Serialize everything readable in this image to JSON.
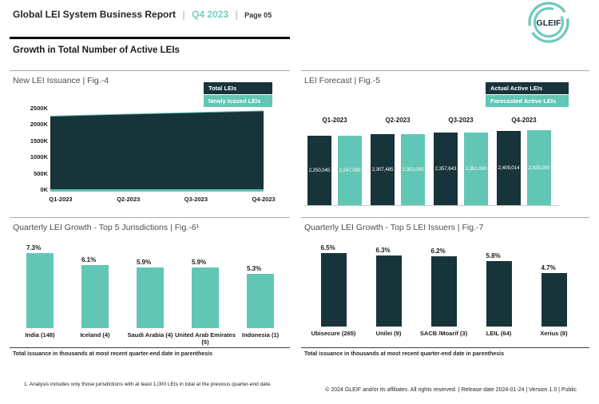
{
  "header": {
    "title": "Global LEI System Business Report",
    "separator": "|",
    "period": "Q4 2023",
    "page": "Page 05",
    "logo_text": "GLEIF"
  },
  "section": {
    "title": "Growth in Total Number of Active LEIs"
  },
  "colors": {
    "dark": "#17343A",
    "teal": "#62C6B5",
    "header_teal": "#7BCCC1",
    "title_gray": "#4D4D4D",
    "divider_gray": "#A9A9A9"
  },
  "chart_data": [
    {
      "id": "fig4",
      "type": "area",
      "title": "New LEI Issuance | Fig.-4",
      "x": [
        "Q1-2023",
        "Q2-2023",
        "Q3-2023",
        "Q4-2023"
      ],
      "series": [
        {
          "name": "Total LEIs",
          "color": "dark",
          "values": [
            2250045,
            2307485,
            2357643,
            2409014
          ]
        },
        {
          "name": "Newly Issued LEIs",
          "color": "teal",
          "values": [
            70000,
            70000,
            70000,
            70000
          ]
        }
      ],
      "ylim": [
        0,
        2500000
      ],
      "y_tick_labels": [
        "2500K",
        "2000K",
        "1500K",
        "1000K",
        "500K",
        "0K"
      ],
      "legend_position": "top-right"
    },
    {
      "id": "fig5",
      "type": "bar",
      "title": "LEI Forecast | Fig.-5",
      "categories": [
        "Q1-2023",
        "Q2-2023",
        "Q3-2023",
        "Q4-2023"
      ],
      "series": [
        {
          "name": "Actual Active LEIs",
          "color": "dark",
          "values": [
            2250045,
            2307485,
            2357643,
            2409014
          ],
          "labels": [
            "2,250,045",
            "2,307,485",
            "2,357,643",
            "2,409,014"
          ]
        },
        {
          "name": "Forecasted Active LEIs",
          "color": "teal",
          "values": [
            2247000,
            2302000,
            2361000,
            2425000
          ],
          "labels": [
            "2,247,000",
            "2,302,000",
            "2,361,000",
            "2,425,000"
          ]
        }
      ],
      "legend_position": "top-right",
      "value_labels_inside": true
    },
    {
      "id": "fig6",
      "type": "bar",
      "title": "Quarterly LEI Growth - Top 5 Jurisdictions | Fig.-6¹",
      "categories": [
        "India (148)",
        "Iceland (4)",
        "Saudi Arabia (4)",
        "United Arab Emirates (5)",
        "Indonesia (1)"
      ],
      "values": [
        7.3,
        6.1,
        5.9,
        5.9,
        5.3
      ],
      "value_labels": [
        "7.3%",
        "6.1%",
        "5.9%",
        "5.9%",
        "5.3%"
      ],
      "color": "teal",
      "footnote": "Total issuance in thousands at most recent quarter-end date in parenthesis"
    },
    {
      "id": "fig7",
      "type": "bar",
      "title": "Quarterly LEI Growth - Top 5 LEI Issuers | Fig.-7",
      "categories": [
        "Ubisecure (265)",
        "Unilei (9)",
        "SACB /Moarif (3)",
        "LEIL (64)",
        "Xerius (8)"
      ],
      "values": [
        6.5,
        6.3,
        6.2,
        5.8,
        4.7
      ],
      "value_labels": [
        "6.5%",
        "6.3%",
        "6.2%",
        "5.8%",
        "4.7%"
      ],
      "color": "dark",
      "footnote": "Total issuance in thousands at most recent quarter-end date in parenthesis"
    }
  ],
  "footnotes": {
    "analysis": "1. Analysis includes only those jurisdictions with at least 1,000 LEIs in total at the previous quarter-end date."
  },
  "footer": {
    "text": "© 2024 GLEIF and/or its affiliates. All rights reserved. | Release date 2024-01-24 | Version 1.0 | Public"
  }
}
